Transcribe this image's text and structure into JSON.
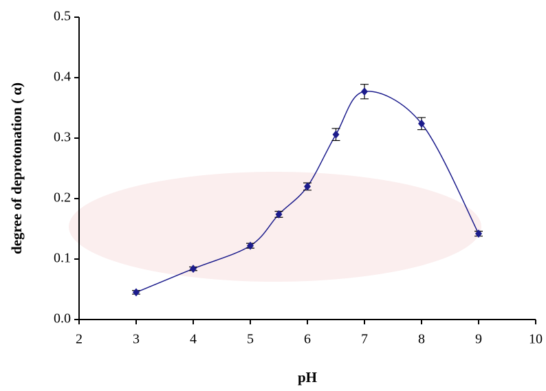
{
  "chart_data": {
    "type": "scatter",
    "x_label": "pH",
    "y_label": "degree of deprotonation ( α)",
    "x": [
      3,
      4,
      5,
      5.5,
      6,
      6.5,
      7,
      8,
      9
    ],
    "series": [
      {
        "color": "#1c1c8c",
        "values": [
          0.045,
          0.084,
          0.122,
          0.174,
          0.22,
          0.306,
          0.377,
          0.324,
          0.142
        ],
        "errors": [
          0.003,
          0.003,
          0.004,
          0.005,
          0.006,
          0.01,
          0.012,
          0.01,
          0.004
        ]
      }
    ],
    "xlim": [
      2,
      10
    ],
    "xticks": [
      2,
      3,
      4,
      5,
      6,
      7,
      8,
      9,
      10
    ],
    "ylim": [
      0,
      0.5
    ],
    "yticks": [
      {
        "value": 0,
        "label": "0.0"
      },
      0.1,
      0.2,
      0.3,
      0.4,
      0.5
    ],
    "smooth": true
  }
}
